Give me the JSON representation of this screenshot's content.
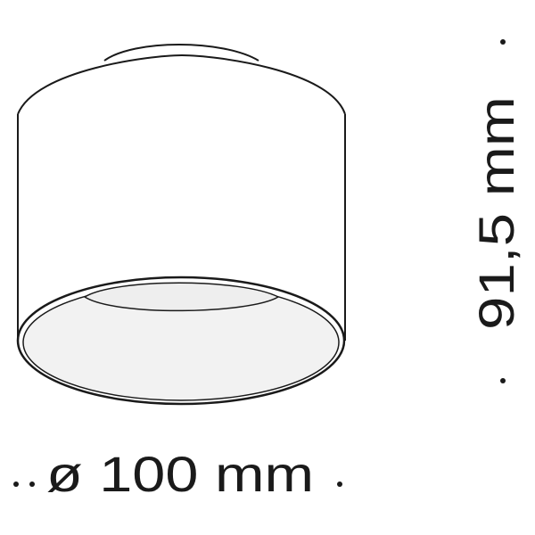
{
  "dimensions": {
    "diameter_label": "ø 100 mm",
    "height_label": "91,5 mm"
  },
  "colors": {
    "line": "#1a1a1a",
    "background": "#ffffff",
    "inner_fill": "#f2f2f2"
  }
}
